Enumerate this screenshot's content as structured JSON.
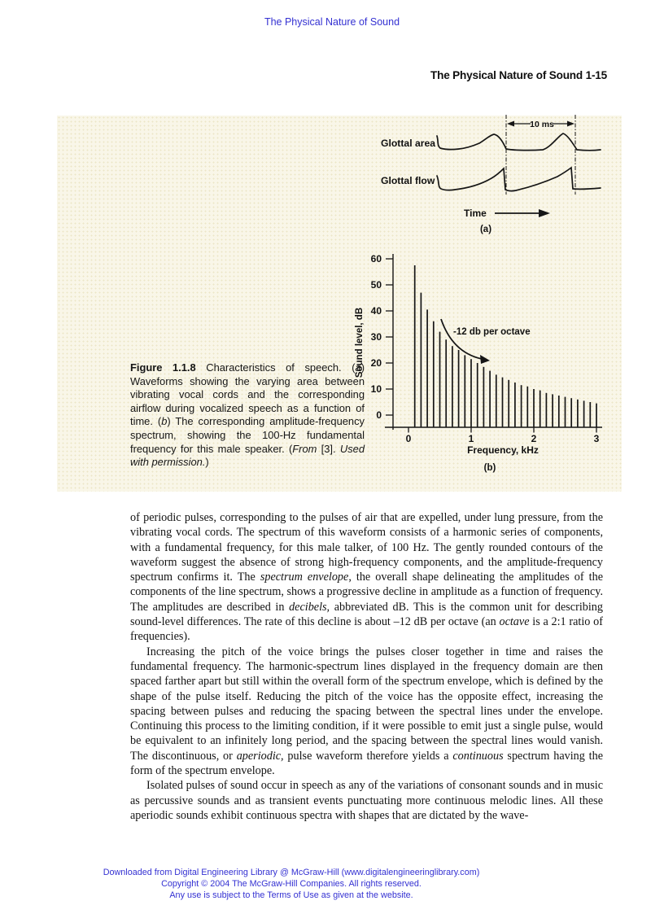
{
  "header": {
    "top_link": "The Physical Nature of Sound",
    "running_head": "The Physical Nature of Sound 1-15"
  },
  "figure": {
    "panel_a": {
      "area_label": "Glottal area",
      "flow_label": "Glottal flow",
      "duration_label": "10 ms",
      "time_label": "Time",
      "tag": "(a)"
    },
    "panel_b": {
      "tag": "(b)"
    },
    "caption_segments": [
      {
        "t": "Figure 1.1.8",
        "b": true
      },
      {
        "t": " Characteristics of speech. ("
      },
      {
        "t": "a",
        "i": true
      },
      {
        "t": ") Waveforms showing the varying area between vibrating vocal cords and the corresponding airflow during vocalized speech as a function of time. ("
      },
      {
        "t": "b",
        "i": true
      },
      {
        "t": ") The corresponding amplitude-frequency spectrum, showing the 100-Hz fundamental frequency for this male speaker. ("
      },
      {
        "t": "From",
        "i": true
      },
      {
        "t": " [3]. "
      },
      {
        "t": "Used with permission.",
        "i": true
      },
      {
        "t": ")"
      }
    ]
  },
  "chart_data": {
    "type": "bar",
    "title": "",
    "xlabel": "Frequency, kHz",
    "ylabel": "Sound level, dB",
    "annotation": "-12 db per octave",
    "x": [
      0.1,
      0.2,
      0.3,
      0.4,
      0.5,
      0.6,
      0.7,
      0.8,
      0.9,
      1.0,
      1.1,
      1.2,
      1.3,
      1.4,
      1.5,
      1.6,
      1.7,
      1.8,
      1.9,
      2.0,
      2.1,
      2.2,
      2.3,
      2.4,
      2.5,
      2.6,
      2.7,
      2.8,
      2.9,
      3.0
    ],
    "values": [
      57.5,
      47,
      40.5,
      36,
      32,
      29,
      26.5,
      25,
      23,
      21.5,
      20,
      18.5,
      17,
      15.5,
      14.5,
      13.5,
      12.5,
      11.5,
      11,
      10,
      9.5,
      8.5,
      8,
      7.5,
      7,
      6.5,
      6,
      5.5,
      5,
      4.5
    ],
    "xticks": [
      0,
      1,
      2,
      3
    ],
    "yticks": [
      0,
      10,
      20,
      30,
      40,
      50,
      60
    ],
    "xlim": [
      -0.4,
      3.1
    ],
    "ylim": [
      -5,
      62
    ],
    "grid": false,
    "legend": "none"
  },
  "body": {
    "paragraphs": [
      {
        "indent": false,
        "segments": [
          {
            "t": "of periodic pulses, corresponding to the pulses of air that are expelled, under lung pressure, from the vibrating vocal cords. The spectrum of this waveform consists of a harmonic series of components, with a fundamental frequency, for this male talker, of 100 Hz. The gently rounded contours of the waveform suggest the absence of strong high-frequency components, and the amplitude-frequency spectrum confirms it. The "
          },
          {
            "t": "spectrum envelope",
            "i": true
          },
          {
            "t": ", the overall shape delineating the amplitudes of the components of the line spectrum, shows a progressive decline in amplitude as a function of frequency. The amplitudes are described in "
          },
          {
            "t": "decibels,",
            "i": true
          },
          {
            "t": " abbreviated dB. This is the common unit for describing sound-level differences. The rate of this decline is about –12 dB per octave (an "
          },
          {
            "t": "octave",
            "i": true
          },
          {
            "t": " is a 2:1 ratio of frequencies)."
          }
        ]
      },
      {
        "indent": true,
        "segments": [
          {
            "t": "Increasing the pitch of the voice brings the pulses closer together in time and raises the fundamental frequency. The harmonic-spectrum lines displayed in the frequency domain are then spaced farther apart but still within the overall form of the spectrum envelope, which is defined by the shape of the pulse itself. Reducing the pitch of the voice has the opposite effect, increasing the spacing between pulses and reducing the spacing between the spectral lines under the envelope. Continuing this process to the limiting condition, if it were possible to emit just a single pulse, would be equivalent to an infinitely long period, and the spacing between the spectral lines would vanish. The discontinuous, or "
          },
          {
            "t": "aperiodic,",
            "i": true
          },
          {
            "t": " pulse waveform therefore yields a "
          },
          {
            "t": "continuous",
            "i": true
          },
          {
            "t": " spectrum having the form of the spectrum envelope."
          }
        ]
      },
      {
        "indent": true,
        "segments": [
          {
            "t": "Isolated pulses of sound occur in speech as any of the variations of consonant sounds and in music as percussive sounds and as transient events punctuating more continuous melodic lines. All these aperiodic sounds exhibit continuous spectra with shapes that are dictated by the wave-"
          }
        ]
      }
    ]
  },
  "footer": {
    "lines": [
      "Downloaded from Digital Engineering Library @ McGraw-Hill (www.digitalengineeringlibrary.com)",
      "Copyright © 2004 The McGraw-Hill Companies. All rights reserved.",
      "Any use is subject to the Terms of Use as given at the website."
    ]
  },
  "colors": {
    "link_blue": "#3431d2",
    "figure_bg": "#f9f6e8",
    "ink": "#1a1a1a"
  }
}
